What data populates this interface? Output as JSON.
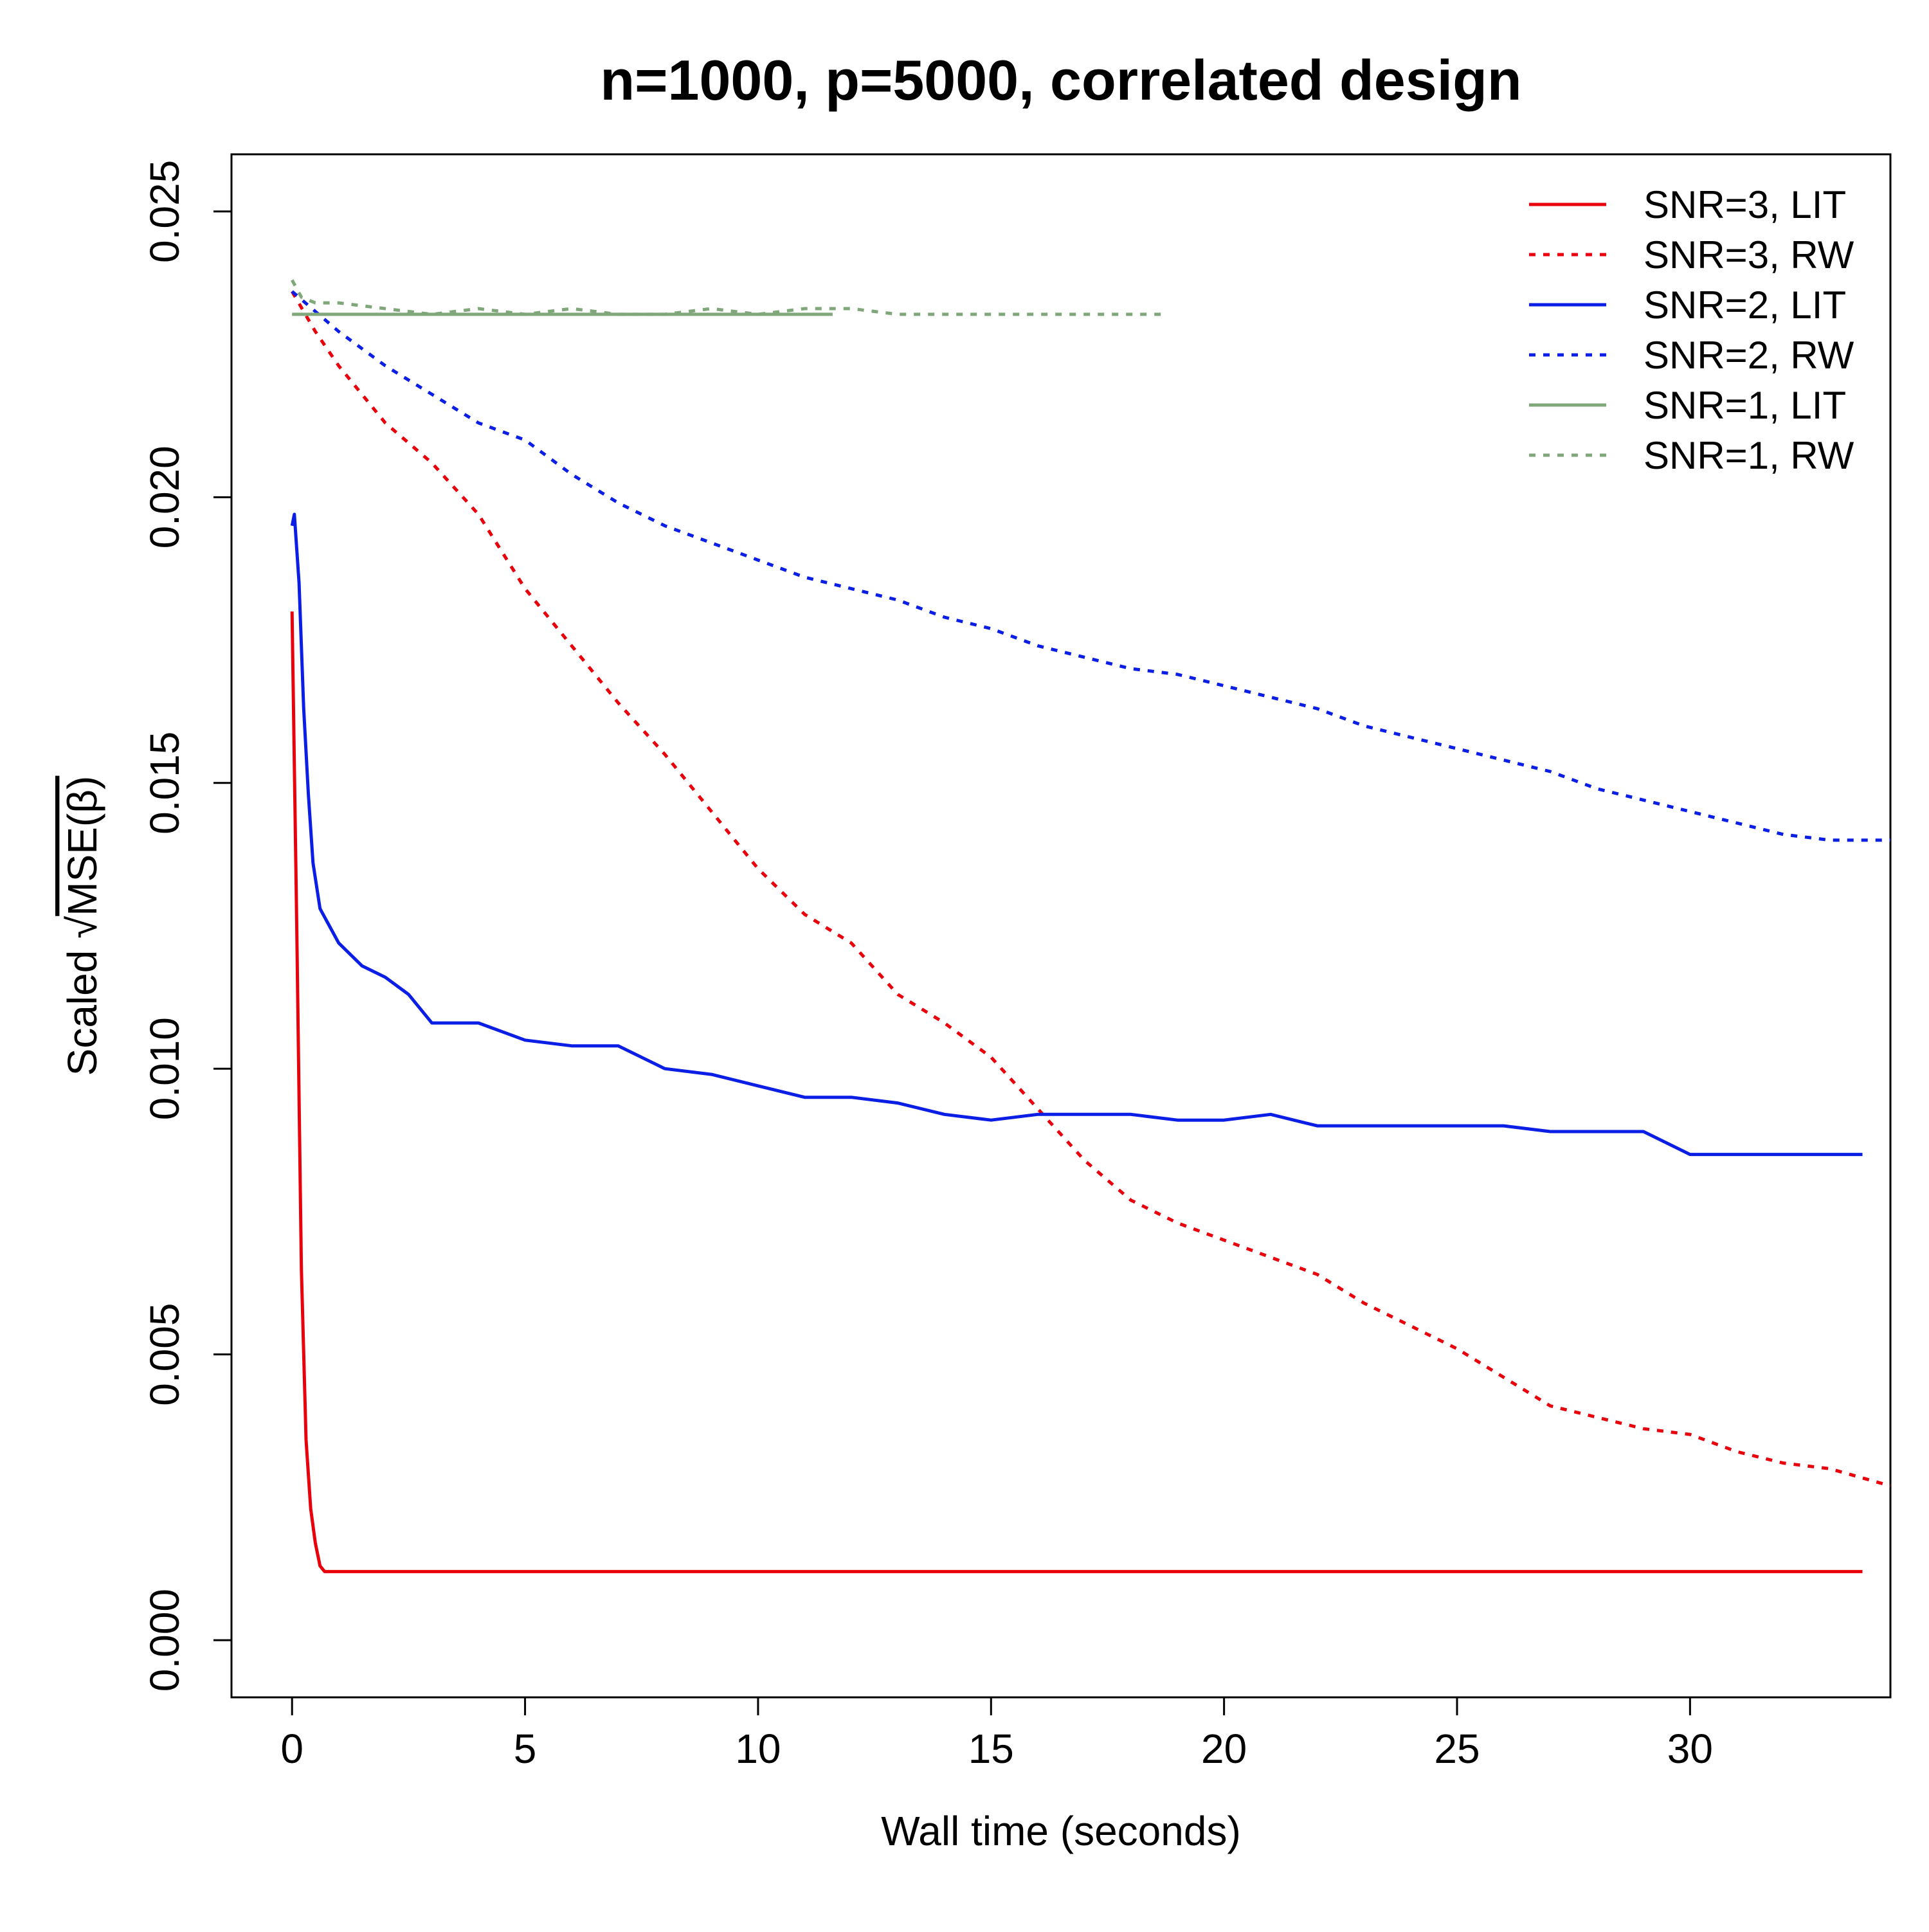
{
  "chart_data": {
    "type": "line",
    "title": "n=1000, p=5000, correlated design",
    "xlabel": "Wall time (seconds)",
    "ylabel_prefix": "Scaled ",
    "ylabel_radical": "√",
    "ylabel_radicand": "MSE(β)",
    "xlim": [
      -1.3,
      34.3
    ],
    "ylim": [
      -0.001,
      0.026
    ],
    "x_ticks": [
      {
        "value": 0,
        "label": "0"
      },
      {
        "value": 5,
        "label": "5"
      },
      {
        "value": 10,
        "label": "10"
      },
      {
        "value": 15,
        "label": "15"
      },
      {
        "value": 20,
        "label": "20"
      },
      {
        "value": 25,
        "label": "25"
      },
      {
        "value": 30,
        "label": "30"
      }
    ],
    "y_ticks": [
      {
        "value": 0.0,
        "label": "0.000"
      },
      {
        "value": 0.005,
        "label": "0.005"
      },
      {
        "value": 0.01,
        "label": "0.010"
      },
      {
        "value": 0.015,
        "label": "0.015"
      },
      {
        "value": 0.02,
        "label": "0.020"
      },
      {
        "value": 0.025,
        "label": "0.025"
      }
    ],
    "grid": false,
    "legend_position": "top-right",
    "series": [
      {
        "name": "SNR=3, LIT",
        "color": "#e8000b",
        "style": "solid",
        "x": [
          0,
          0.1,
          0.2,
          0.3,
          0.4,
          0.5,
          0.6,
          0.7,
          1,
          5,
          10,
          15,
          20,
          25,
          30,
          33.7
        ],
        "y": [
          0.018,
          0.0125,
          0.0065,
          0.0035,
          0.0023,
          0.0017,
          0.0013,
          0.0012,
          0.0012,
          0.0012,
          0.0012,
          0.0012,
          0.0012,
          0.0012,
          0.0012,
          0.0012
        ]
      },
      {
        "name": "SNR=3, RW",
        "color": "#e8000b",
        "style": "dotted",
        "x": [
          0,
          0.5,
          1,
          1.5,
          2,
          3,
          4,
          5,
          6,
          7,
          8,
          9,
          10,
          11,
          12,
          13,
          14,
          15,
          16,
          17,
          18,
          19,
          20,
          21,
          22,
          23,
          24,
          25,
          26,
          27,
          28,
          29,
          30,
          31,
          32,
          33,
          34.3
        ],
        "y": [
          0.0236,
          0.0229,
          0.0223,
          0.0218,
          0.0213,
          0.0206,
          0.0197,
          0.0184,
          0.0174,
          0.0164,
          0.0155,
          0.0145,
          0.0135,
          0.0127,
          0.0122,
          0.0113,
          0.0108,
          0.0102,
          0.0093,
          0.0084,
          0.0077,
          0.0073,
          0.007,
          0.0067,
          0.0064,
          0.0059,
          0.0055,
          0.0051,
          0.0046,
          0.0041,
          0.0039,
          0.0037,
          0.0036,
          0.0033,
          0.0031,
          0.003,
          0.0027
        ]
      },
      {
        "name": "SNR=2, LIT",
        "color": "#0a1ee6",
        "style": "solid",
        "x": [
          0,
          0.05,
          0.15,
          0.25,
          0.35,
          0.45,
          0.6,
          0.8,
          1,
          1.5,
          2,
          2.5,
          3,
          3.5,
          4,
          5,
          6,
          7,
          8,
          9,
          10,
          11,
          12,
          13,
          14,
          15,
          16,
          17,
          18,
          19,
          20,
          21,
          22,
          23,
          24,
          25,
          26,
          27,
          28,
          29,
          30,
          31,
          32,
          33,
          33.7
        ],
        "y": [
          0.0195,
          0.0197,
          0.0185,
          0.0163,
          0.0148,
          0.0136,
          0.0128,
          0.0125,
          0.0122,
          0.0118,
          0.0116,
          0.0113,
          0.0108,
          0.0108,
          0.0108,
          0.0105,
          0.0104,
          0.0104,
          0.01,
          0.0099,
          0.0097,
          0.0095,
          0.0095,
          0.0094,
          0.0092,
          0.0091,
          0.0092,
          0.0092,
          0.0092,
          0.0091,
          0.0091,
          0.0092,
          0.009,
          0.009,
          0.009,
          0.009,
          0.009,
          0.0089,
          0.0089,
          0.0089,
          0.0085,
          0.0085,
          0.0085,
          0.0085,
          0.0085
        ]
      },
      {
        "name": "SNR=2, RW",
        "color": "#0a1ee6",
        "style": "dotted",
        "x": [
          0,
          1,
          2,
          3,
          4,
          5,
          6,
          7,
          8,
          9,
          10,
          11,
          12,
          13,
          14,
          15,
          16,
          17,
          18,
          19,
          20,
          21,
          22,
          23,
          24,
          25,
          26,
          27,
          28,
          29,
          30,
          31,
          32,
          33,
          34.3
        ],
        "y": [
          0.0236,
          0.0229,
          0.0223,
          0.0218,
          0.0213,
          0.021,
          0.0204,
          0.0199,
          0.0195,
          0.0192,
          0.0189,
          0.0186,
          0.0184,
          0.0182,
          0.0179,
          0.0177,
          0.0174,
          0.0172,
          0.017,
          0.0169,
          0.0167,
          0.0165,
          0.0163,
          0.016,
          0.0158,
          0.0156,
          0.0154,
          0.0152,
          0.0149,
          0.0147,
          0.0145,
          0.0143,
          0.0141,
          0.014,
          0.014
        ]
      },
      {
        "name": "SNR=1, LIT",
        "color": "#7fa77a",
        "style": "solid",
        "x": [
          0,
          11.6
        ],
        "y": [
          0.0232,
          0.0232
        ]
      },
      {
        "name": "SNR=1, RW",
        "color": "#7fa77a",
        "style": "dotted",
        "x": [
          0,
          0.2,
          0.5,
          1,
          2,
          3,
          4,
          5,
          6,
          7,
          8,
          9,
          10,
          11,
          12,
          13,
          14,
          15,
          16,
          17,
          18,
          18.8
        ],
        "y": [
          0.0238,
          0.0235,
          0.0234,
          0.0234,
          0.0233,
          0.0232,
          0.0233,
          0.0232,
          0.0233,
          0.0232,
          0.0232,
          0.0233,
          0.0232,
          0.0233,
          0.0233,
          0.0232,
          0.0232,
          0.0232,
          0.0232,
          0.0232,
          0.0232,
          0.0232
        ]
      }
    ]
  }
}
